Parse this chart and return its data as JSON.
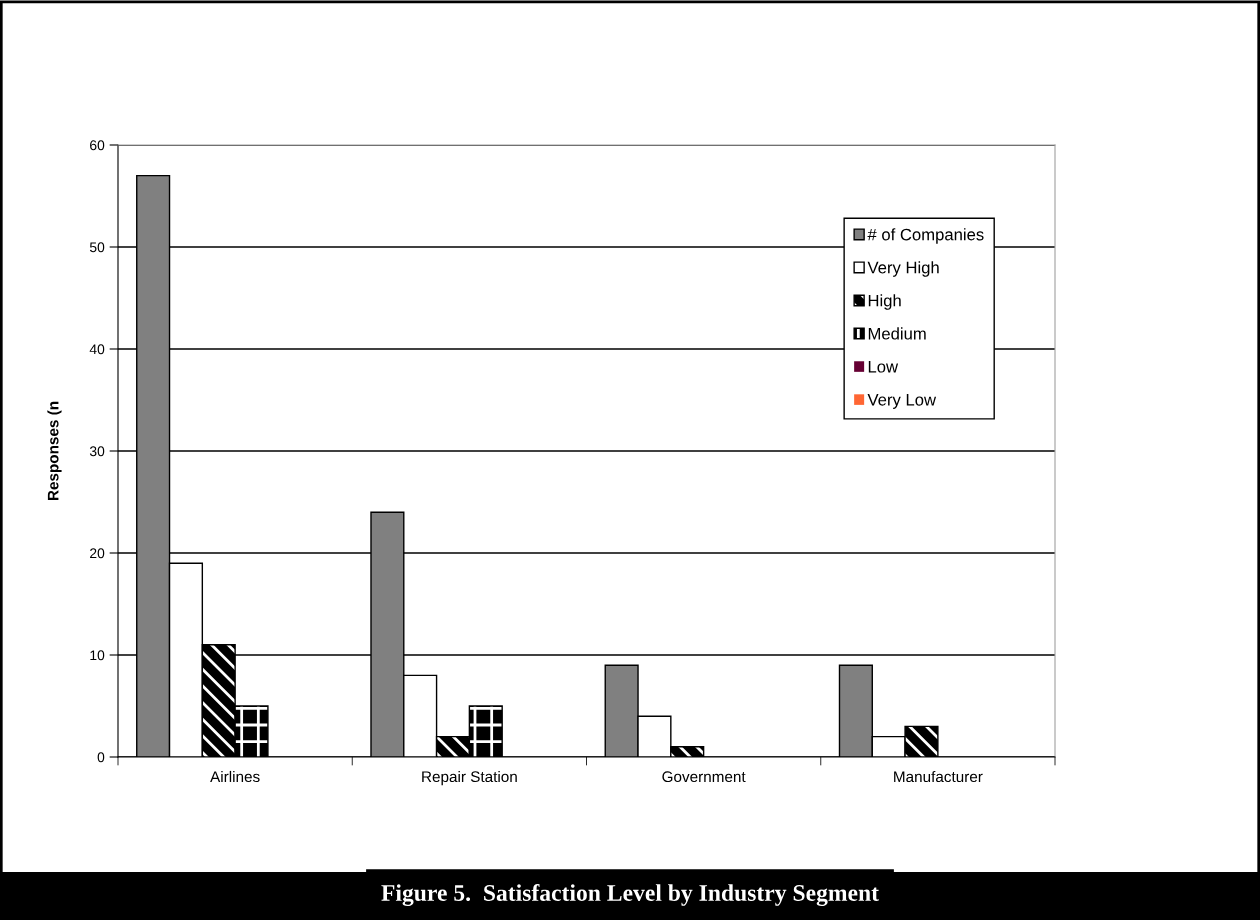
{
  "chart_data": {
    "type": "bar",
    "categories": [
      "Airlines",
      "Repair Station",
      "Government",
      "Manufacturer"
    ],
    "series": [
      {
        "name": "# of Companies",
        "color": "#808080",
        "values": [
          57,
          24,
          9,
          9
        ]
      },
      {
        "name": "Very High",
        "color": "#ffffff",
        "values": [
          19,
          8,
          4,
          2
        ]
      },
      {
        "name": "High",
        "color": "#000000",
        "values": [
          11,
          2,
          1,
          3
        ]
      },
      {
        "name": "Medium",
        "color": "#000000",
        "values": [
          5,
          5,
          0,
          0
        ]
      },
      {
        "name": "Low",
        "color": "#660033",
        "values": [
          0,
          0,
          0,
          0
        ]
      },
      {
        "name": "Very Low",
        "color": "#ff6633",
        "values": [
          0,
          0,
          0,
          0
        ]
      }
    ],
    "ylabel": "Responses (n",
    "ylim": [
      0,
      60
    ],
    "yticks": [
      0,
      10,
      20,
      30,
      40,
      50,
      60
    ],
    "grid": "y",
    "legend": "top right",
    "annotations": [
      "Figure 5.  Satisfaction Level by Industry Segment"
    ]
  }
}
